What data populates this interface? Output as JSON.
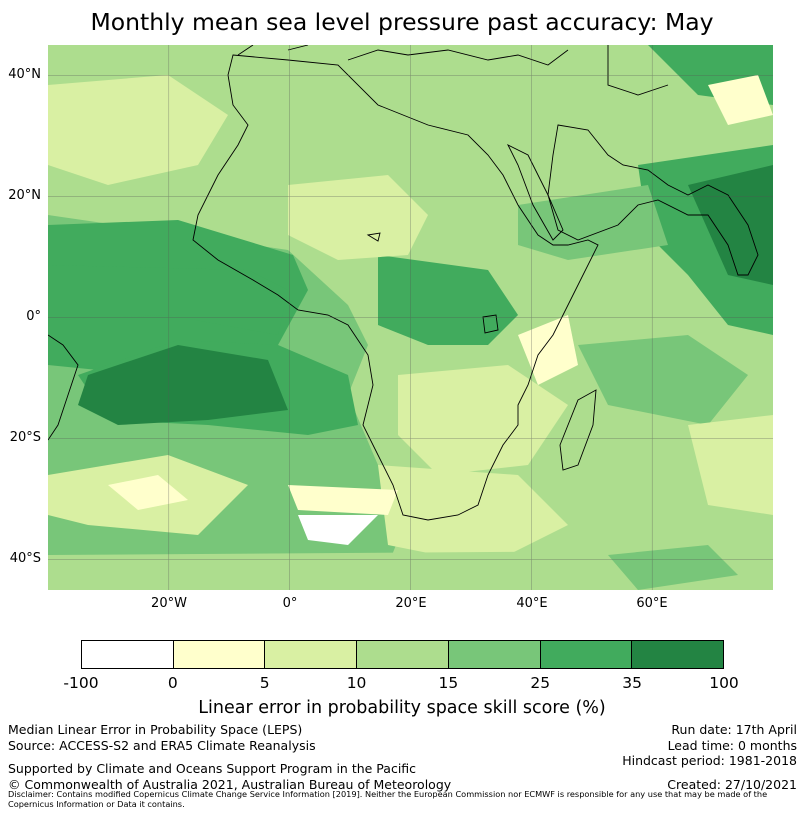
{
  "title": "Monthly mean sea level pressure past accuracy: May",
  "map": {
    "lat_ticks": [
      "40°N",
      "20°N",
      "0°",
      "20°S",
      "40°S"
    ],
    "lon_ticks": [
      "20°W",
      "0°",
      "20°E",
      "40°E",
      "60°E"
    ],
    "extent": {
      "lon": [
        -40,
        80
      ],
      "lat": [
        -45,
        45
      ]
    }
  },
  "colorbar": {
    "title": "Linear error in probability space skill score (%)",
    "ticks": [
      "-100",
      "0",
      "5",
      "10",
      "15",
      "25",
      "35",
      "100"
    ],
    "colors": [
      "#ffffff",
      "#ffffcc",
      "#d9f0a3",
      "#addd8e",
      "#78c679",
      "#41ab5d",
      "#238443"
    ]
  },
  "footer": {
    "left_line1": "Median Linear Error in Probability Space (LEPS)",
    "left_line2": "Source: ACCESS-S2 and ERA5 Climate Reanalysis",
    "support": "Supported by Climate and Oceans Support Program in the Pacific",
    "copyright": "© Commonwealth of Australia 2021, Australian Bureau of Meteorology",
    "run_date": "Run date: 17th April",
    "lead_time": "Lead time: 0 months",
    "hindcast": "Hindcast period: 1981-2018",
    "created": "Created: 27/10/2021",
    "disclaimer": "Disclaimer: Contains modified Copernicus Climate Change Service Information [2019]. Neither the European Commission nor ECMWF is responsible for any use that may be made of the Copernicus Information or Data it contains."
  }
}
